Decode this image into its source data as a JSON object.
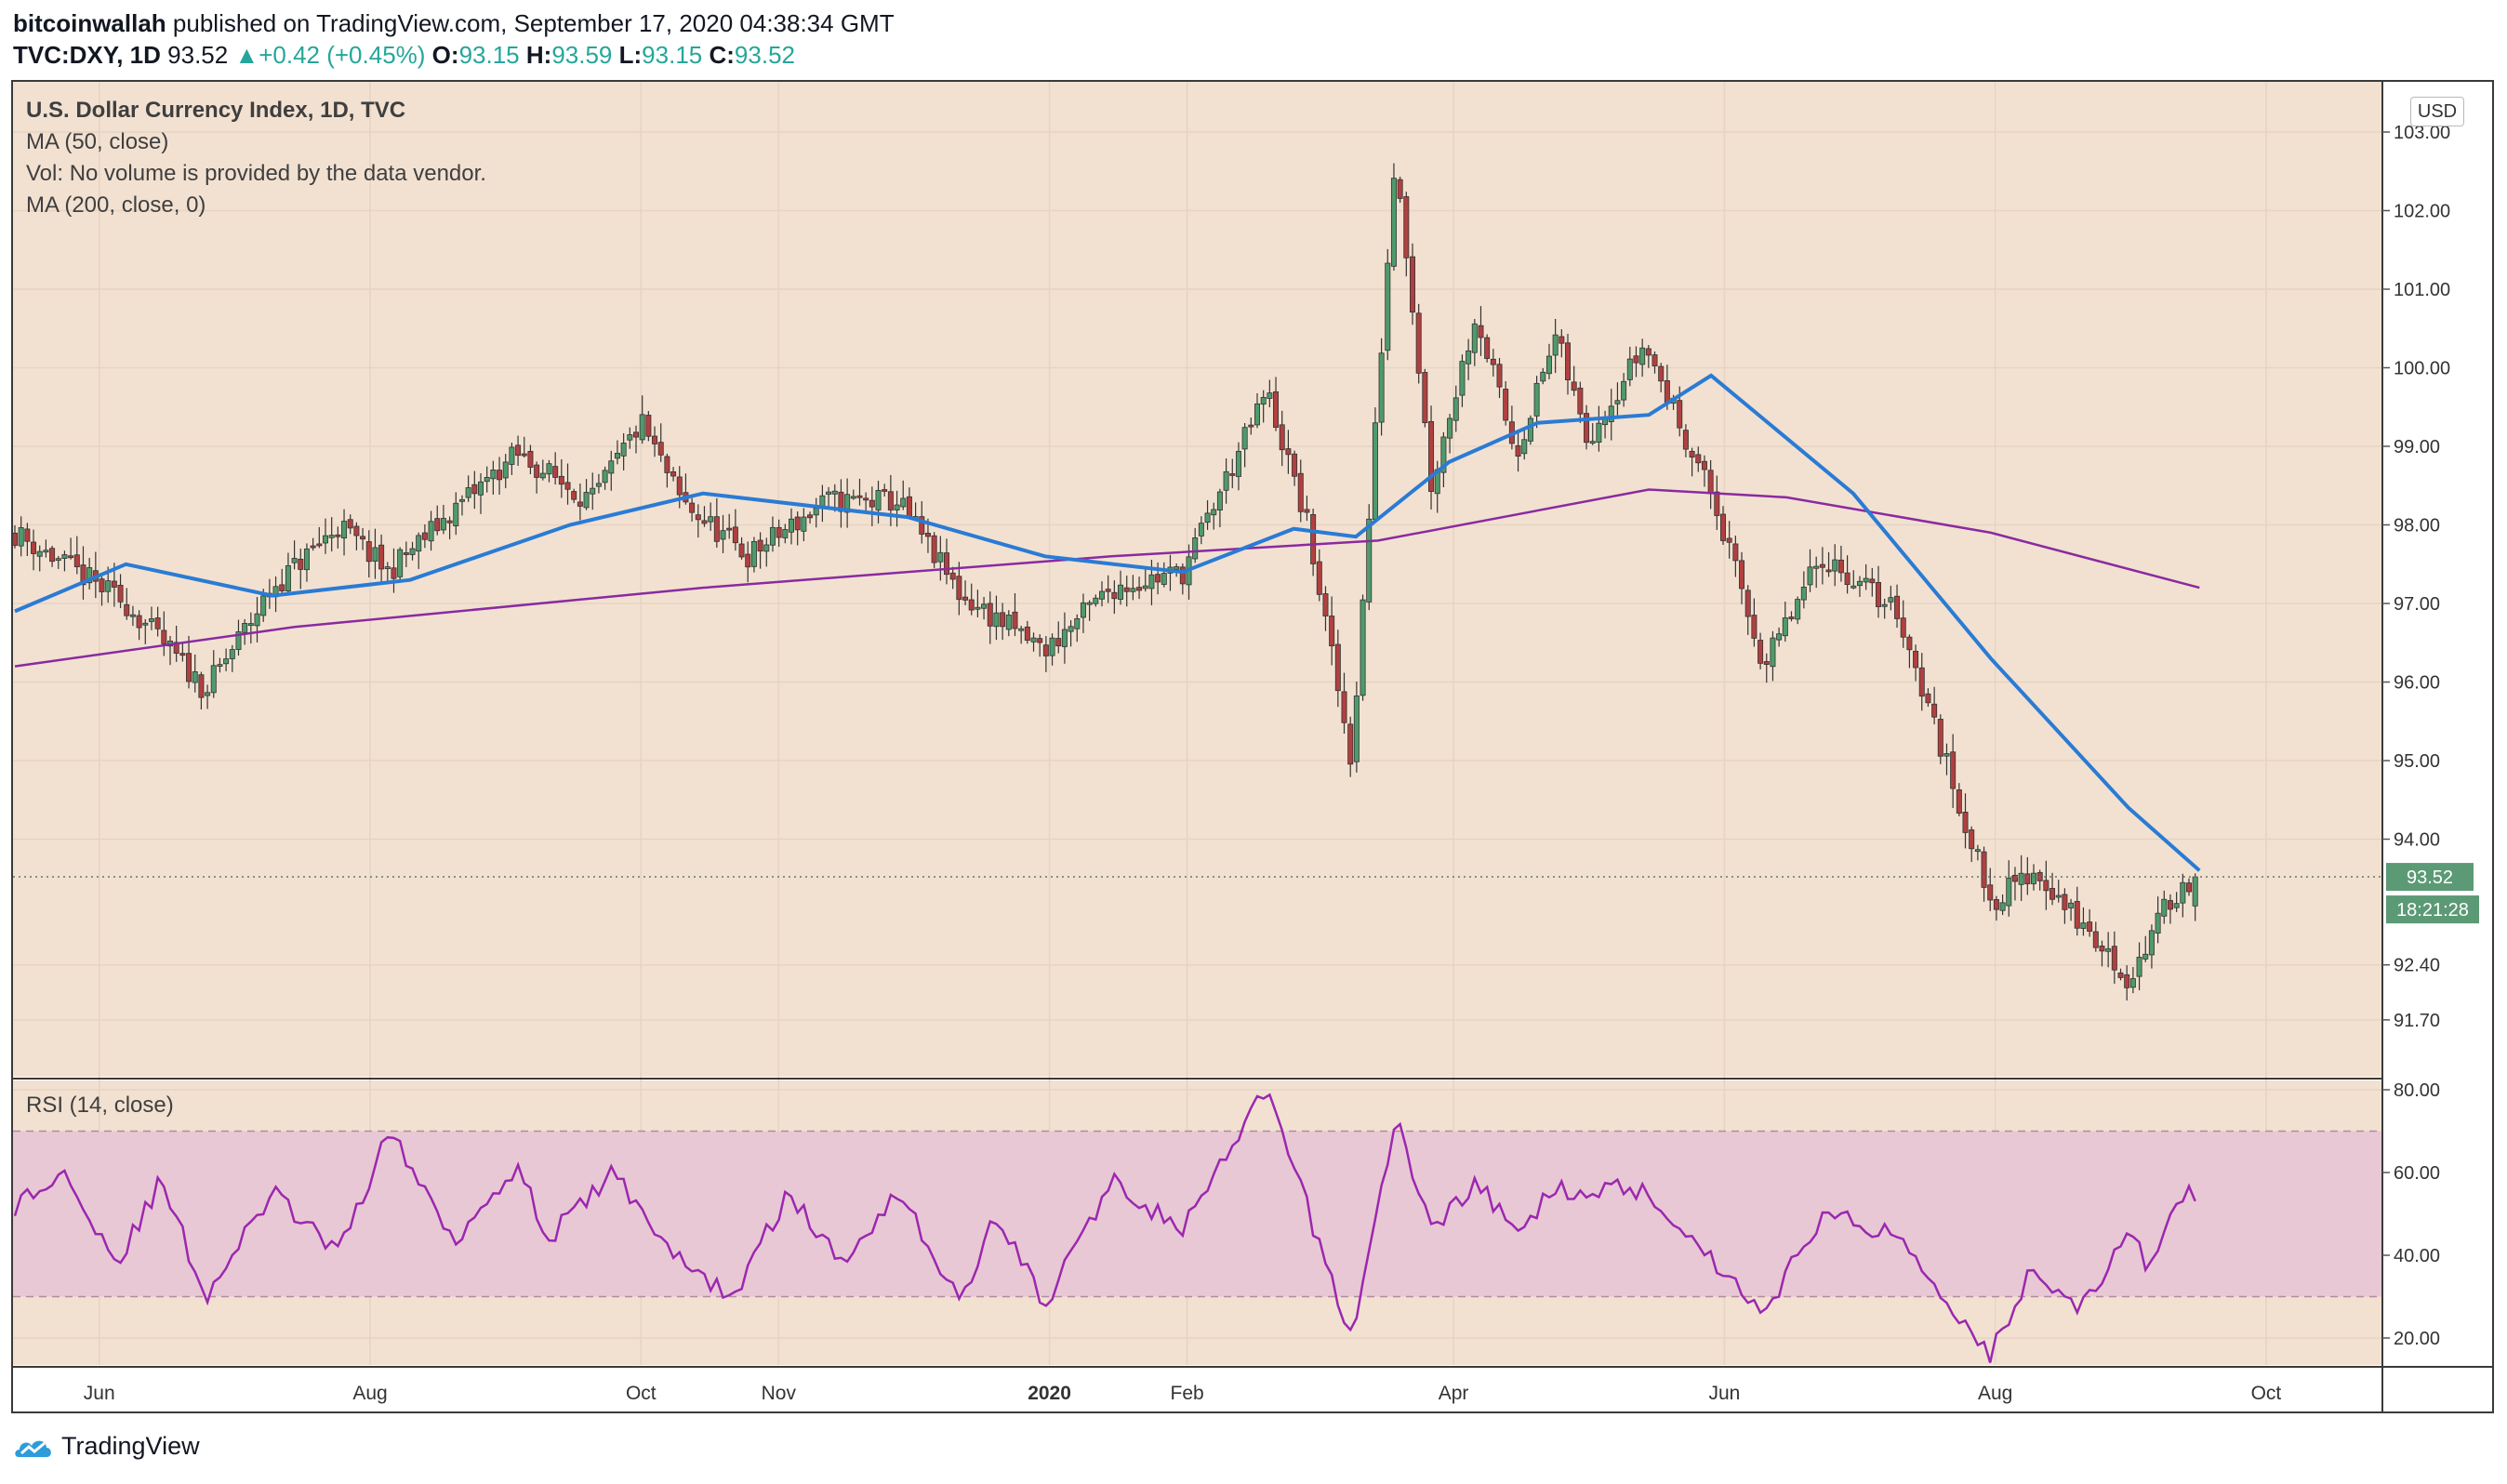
{
  "header": {
    "author": "bitcoinwallah",
    "published_text": "published on TradingView.com, September 17, 2020 04:38:34 GMT"
  },
  "symbol_bar": {
    "symbol": "TVC:DXY, 1D",
    "last": "93.52",
    "change": "+0.42 (+0.45%)",
    "open_label": "O:",
    "open": "93.15",
    "high_label": "H:",
    "high": "93.59",
    "low_label": "L:",
    "low": "93.15",
    "close_label": "C:",
    "close": "93.52"
  },
  "legend": {
    "title": "U.S. Dollar Currency Index, 1D, TVC",
    "ma50": "MA (50, close)",
    "vol": "Vol: No volume is provided by the data vendor.",
    "ma200": "MA (200, close, 0)",
    "rsi": "RSI (14, close)"
  },
  "currency": "USD",
  "price_label": "93.52",
  "countdown_label": "18:21:28",
  "branding": "TradingView",
  "colors": {
    "background": "#f2e1d1",
    "up": "#4f9a6b",
    "down": "#b04040",
    "ma50": "#2a7bd4",
    "ma200": "#8a2aa0",
    "rsi_line": "#9c27b0",
    "rsi_band": "#e8c8d4",
    "price_tag": "#5c9a76"
  },
  "chart_data": {
    "type": "candlestick",
    "price_axis": {
      "ticks": [
        "103.00",
        "102.00",
        "101.00",
        "100.00",
        "99.00",
        "98.00",
        "97.00",
        "96.00",
        "95.00",
        "94.00",
        "92.40",
        "91.70"
      ]
    },
    "time_axis": [
      "Jun",
      "Aug",
      "Oct",
      "Nov",
      "2020",
      "Feb",
      "Apr",
      "Jun",
      "Aug",
      "Oct"
    ],
    "price_anchors": [
      [
        "2019-05-13",
        97.9
      ],
      [
        "2019-06-07",
        97.0
      ],
      [
        "2019-06-25",
        95.9
      ],
      [
        "2019-07-10",
        97.2
      ],
      [
        "2019-07-25",
        98.0
      ],
      [
        "2019-08-05",
        97.4
      ],
      [
        "2019-08-20",
        98.2
      ],
      [
        "2019-09-03",
        98.9
      ],
      [
        "2019-09-20",
        98.3
      ],
      [
        "2019-10-01",
        99.3
      ],
      [
        "2019-10-10",
        98.3
      ],
      [
        "2019-10-25",
        97.6
      ],
      [
        "2019-11-12",
        98.3
      ],
      [
        "2019-11-28",
        98.3
      ],
      [
        "2019-12-12",
        97.1
      ],
      [
        "2019-12-31",
        96.4
      ],
      [
        "2020-01-15",
        97.2
      ],
      [
        "2020-01-31",
        97.4
      ],
      [
        "2020-02-19",
        99.7
      ],
      [
        "2020-02-28",
        98.0
      ],
      [
        "2020-03-09",
        95.0
      ],
      [
        "2020-03-19",
        102.8
      ],
      [
        "2020-03-27",
        98.5
      ],
      [
        "2020-04-06",
        100.7
      ],
      [
        "2020-04-15",
        98.9
      ],
      [
        "2020-04-24",
        100.4
      ],
      [
        "2020-05-01",
        99.1
      ],
      [
        "2020-05-14",
        100.3
      ],
      [
        "2020-05-29",
        98.4
      ],
      [
        "2020-06-10",
        96.2
      ],
      [
        "2020-06-23",
        97.6
      ],
      [
        "2020-07-10",
        96.9
      ],
      [
        "2020-07-31",
        93.2
      ],
      [
        "2020-08-10",
        93.6
      ],
      [
        "2020-08-31",
        92.2
      ],
      [
        "2020-09-10",
        93.3
      ],
      [
        "2020-09-16",
        93.52
      ]
    ],
    "ma50_anchors": [
      [
        "2019-05-13",
        96.9
      ],
      [
        "2019-06-07",
        97.5
      ],
      [
        "2019-07-10",
        97.1
      ],
      [
        "2019-08-10",
        97.3
      ],
      [
        "2019-09-15",
        98.0
      ],
      [
        "2019-10-15",
        98.4
      ],
      [
        "2019-11-30",
        98.1
      ],
      [
        "2019-12-31",
        97.6
      ],
      [
        "2020-01-31",
        97.4
      ],
      [
        "2020-02-25",
        97.95
      ],
      [
        "2020-03-10",
        97.85
      ],
      [
        "2020-03-31",
        98.8
      ],
      [
        "2020-04-20",
        99.3
      ],
      [
        "2020-05-15",
        99.4
      ],
      [
        "2020-05-29",
        99.9
      ],
      [
        "2020-06-30",
        98.4
      ],
      [
        "2020-07-31",
        96.3
      ],
      [
        "2020-08-31",
        94.4
      ],
      [
        "2020-09-16",
        93.6
      ]
    ],
    "ma200_anchors": [
      [
        "2019-05-13",
        96.2
      ],
      [
        "2019-07-15",
        96.7
      ],
      [
        "2019-10-15",
        97.2
      ],
      [
        "2020-01-15",
        97.6
      ],
      [
        "2020-03-15",
        97.8
      ],
      [
        "2020-05-15",
        98.45
      ],
      [
        "2020-06-15",
        98.35
      ],
      [
        "2020-07-31",
        97.9
      ],
      [
        "2020-09-16",
        97.2
      ]
    ],
    "rsi": {
      "ticks": [
        "80.00",
        "60.00",
        "40.00",
        "20.00"
      ],
      "upper": 70,
      "lower": 30,
      "anchors": [
        [
          "2019-05-13",
          52
        ],
        [
          "2019-05-25",
          60
        ],
        [
          "2019-06-05",
          38
        ],
        [
          "2019-06-15",
          58
        ],
        [
          "2019-06-25",
          30
        ],
        [
          "2019-07-10",
          55
        ],
        [
          "2019-07-25",
          40
        ],
        [
          "2019-08-05",
          70
        ],
        [
          "2019-08-20",
          44
        ],
        [
          "2019-09-03",
          62
        ],
        [
          "2019-09-10",
          44
        ],
        [
          "2019-09-25",
          60
        ],
        [
          "2019-10-10",
          38
        ],
        [
          "2019-10-22",
          30
        ],
        [
          "2019-11-03",
          55
        ],
        [
          "2019-11-15",
          38
        ],
        [
          "2019-11-28",
          56
        ],
        [
          "2019-12-12",
          28
        ],
        [
          "2019-12-20",
          50
        ],
        [
          "2019-12-31",
          28
        ],
        [
          "2020-01-15",
          58
        ],
        [
          "2020-01-31",
          46
        ],
        [
          "2020-02-19",
          80
        ],
        [
          "2020-03-09",
          20
        ],
        [
          "2020-03-19",
          73
        ],
        [
          "2020-03-27",
          46
        ],
        [
          "2020-04-06",
          58
        ],
        [
          "2020-04-15",
          45
        ],
        [
          "2020-04-24",
          56
        ],
        [
          "2020-05-14",
          56
        ],
        [
          "2020-06-10",
          26
        ],
        [
          "2020-06-23",
          50
        ],
        [
          "2020-07-10",
          45
        ],
        [
          "2020-07-31",
          16
        ],
        [
          "2020-08-10",
          38
        ],
        [
          "2020-08-20",
          26
        ],
        [
          "2020-08-31",
          46
        ],
        [
          "2020-09-05",
          36
        ],
        [
          "2020-09-10",
          53
        ],
        [
          "2020-09-16",
          55
        ]
      ]
    }
  }
}
